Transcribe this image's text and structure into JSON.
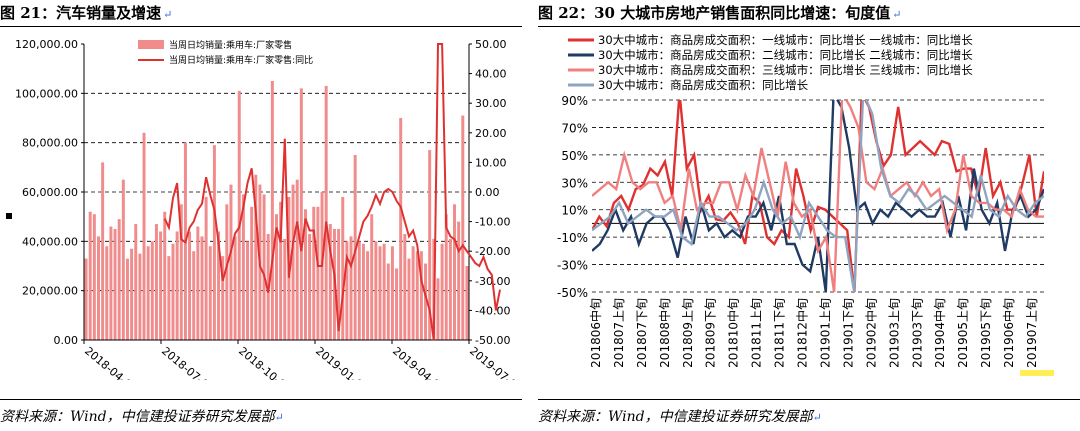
{
  "left": {
    "title": "图 21：汽车销量及增速",
    "source": "资料来源：Wind，中信建投证券研究发展部",
    "chart_data": {
      "type": "bar+line",
      "legend": [
        "当周日均销量:乘用车:厂家零售",
        "当周日均销量:乘用车:厂家零售:同比"
      ],
      "y_left_ticks": [
        "120,000.00",
        "100,000.00",
        "80,000.00",
        "60,000.00",
        "40,000.00",
        "20,000.00",
        "0.00"
      ],
      "y_left_lim": [
        0,
        120000
      ],
      "y_right_ticks": [
        "50.00",
        "40.00",
        "30.00",
        "20.00",
        "10.00",
        "0.00",
        "-10.00",
        "-20.00",
        "-30.00",
        "-40.00",
        "-50.00"
      ],
      "y_right_lim": [
        -50,
        50
      ],
      "x_ticks": [
        "2018-04-07",
        "2018-07-07",
        "2018-10-07",
        "2019-01-07",
        "2019-04-07",
        "2019-07-07"
      ],
      "bars": [
        33000,
        52000,
        51000,
        42000,
        72000,
        38000,
        46000,
        45000,
        49000,
        65000,
        33000,
        37000,
        47000,
        35000,
        84000,
        38000,
        40000,
        47000,
        44000,
        52000,
        34000,
        39000,
        44000,
        55000,
        80000,
        44000,
        36000,
        46000,
        42000,
        58000,
        38000,
        79000,
        44000,
        34000,
        55000,
        63000,
        42000,
        101000,
        59000,
        40000,
        54000,
        67000,
        63000,
        59000,
        43000,
        105000,
        51000,
        56000,
        41000,
        58000,
        63000,
        65000,
        102000,
        53000,
        43000,
        54000,
        54000,
        60000,
        103000,
        47000,
        45000,
        45000,
        58000,
        40000,
        42000,
        75000,
        40000,
        39000,
        36000,
        51000,
        40000,
        38000,
        39000,
        31000,
        38000,
        29000,
        90000,
        43000,
        33000,
        38000,
        36000,
        36000,
        31000,
        77000,
        41000,
        25000,
        39000,
        51000,
        41000,
        55000,
        48000,
        91000,
        30000
      ],
      "line": [
        null,
        null,
        null,
        null,
        null,
        null,
        null,
        null,
        null,
        null,
        null,
        null,
        null,
        null,
        null,
        null,
        null,
        null,
        null,
        -9,
        -12,
        -2,
        3,
        -16,
        -17,
        -12,
        -10,
        -6,
        -4,
        5,
        -1,
        -6,
        -17,
        -30,
        -25,
        -20,
        -14,
        -12,
        -5,
        3,
        8,
        -7,
        -25,
        -28,
        -34,
        -23,
        -12,
        -17,
        18,
        -29,
        -17,
        -10,
        -20,
        -9,
        -13,
        -13,
        -25,
        -25,
        -10,
        -20,
        -28,
        -47,
        -35,
        -22,
        -25,
        -20,
        -15,
        -10,
        -8,
        -5,
        -1,
        -4,
        0,
        1,
        0,
        -3,
        -5,
        -10,
        -15,
        -13,
        -18,
        -30,
        -35,
        -40,
        -50,
        50,
        50,
        -12,
        -15,
        -16,
        -20,
        -18,
        -20,
        -22,
        -24,
        -25,
        -22,
        -26,
        -28,
        -40,
        -33
      ]
    }
  },
  "right": {
    "title": "图 22：30 大城市房地产销售面积同比增速：旬度值",
    "source": "资料来源：Wind，中信建投证券研究发展部",
    "chart_data": {
      "type": "line",
      "legend": [
        "30大中城市：商品房成交面积：一线城市：同比增长  一线城市：同比增长",
        "30大中城市：商品房成交面积：二线城市：同比增长  二线城市：同比增长",
        "30大中城市：商品房成交面积：三线城市：同比增长  三线城市：同比增长",
        "30大中城市：商品房成交面积：同比增长"
      ],
      "y_ticks": [
        "90%",
        "70%",
        "50%",
        "30%",
        "10%",
        "-10%",
        "-30%",
        "-50%"
      ],
      "ylim": [
        -50,
        90
      ],
      "x_labels": [
        "201806中旬",
        "201807上旬",
        "201807下旬",
        "201808中旬",
        "201809上旬",
        "201809下旬",
        "201810中旬",
        "201811上旬",
        "201811下旬",
        "201812中旬",
        "201901上旬",
        "201901下旬",
        "201902中旬",
        "201903上旬",
        "201903下旬",
        "201904中旬",
        "201905上旬",
        "201905下旬",
        "201906中旬",
        "201907上旬"
      ],
      "series": [
        {
          "name": "一线城市",
          "color": "#e03131",
          "values": [
            -5,
            5,
            -2,
            15,
            20,
            10,
            25,
            28,
            40,
            35,
            45,
            20,
            95,
            40,
            50,
            10,
            20,
            3,
            2,
            8,
            0,
            -15,
            20,
            15,
            -10,
            -15,
            -5,
            -10,
            40,
            20,
            -5,
            12,
            10,
            5,
            0,
            -5,
            -50,
            95,
            85,
            60,
            42,
            50,
            85,
            50,
            55,
            60,
            55,
            50,
            60,
            58,
            38,
            40,
            40,
            20,
            55,
            20,
            30,
            10,
            10,
            28,
            50,
            5,
            38
          ]
        },
        {
          "name": "二线城市",
          "color": "#1f3b63",
          "values": [
            -20,
            -15,
            -5,
            10,
            -5,
            5,
            -15,
            0,
            5,
            5,
            -5,
            -25,
            5,
            -15,
            15,
            -5,
            0,
            -10,
            -5,
            -10,
            5,
            5,
            15,
            -5,
            20,
            -15,
            -15,
            -30,
            -35,
            -10,
            -50,
            95,
            85,
            55,
            10,
            15,
            0,
            10,
            5,
            15,
            10,
            5,
            10,
            5,
            5,
            15,
            -10,
            20,
            -5,
            40,
            10,
            0,
            15,
            -20,
            10,
            20,
            5,
            10,
            25
          ]
        },
        {
          "name": "三线城市",
          "color": "#f08080",
          "values": [
            20,
            25,
            30,
            25,
            50,
            30,
            25,
            30,
            30,
            15,
            20,
            -5,
            40,
            10,
            15,
            15,
            30,
            30,
            10,
            35,
            20,
            55,
            30,
            5,
            45,
            15,
            5,
            10,
            -20,
            -10,
            -50,
            95,
            85,
            70,
            30,
            25,
            40,
            20,
            25,
            30,
            20,
            30,
            20,
            25,
            -5,
            10,
            50,
            20,
            15,
            15,
            10,
            10,
            5,
            25,
            10,
            5,
            5
          ]
        },
        {
          "name": "全国",
          "color": "#8ea4c0",
          "values": [
            -5,
            0,
            5,
            15,
            0,
            5,
            10,
            5,
            5,
            10,
            -10,
            -15,
            15,
            5,
            5,
            0,
            -5,
            0,
            10,
            30,
            10,
            0,
            5,
            -10,
            15,
            5,
            -5,
            -10,
            -10,
            -50,
            95,
            80,
            40,
            20,
            15,
            25,
            20,
            10,
            15,
            20,
            15,
            10,
            5,
            35,
            10,
            5,
            20,
            10,
            5,
            15,
            20
          ]
        }
      ]
    }
  }
}
